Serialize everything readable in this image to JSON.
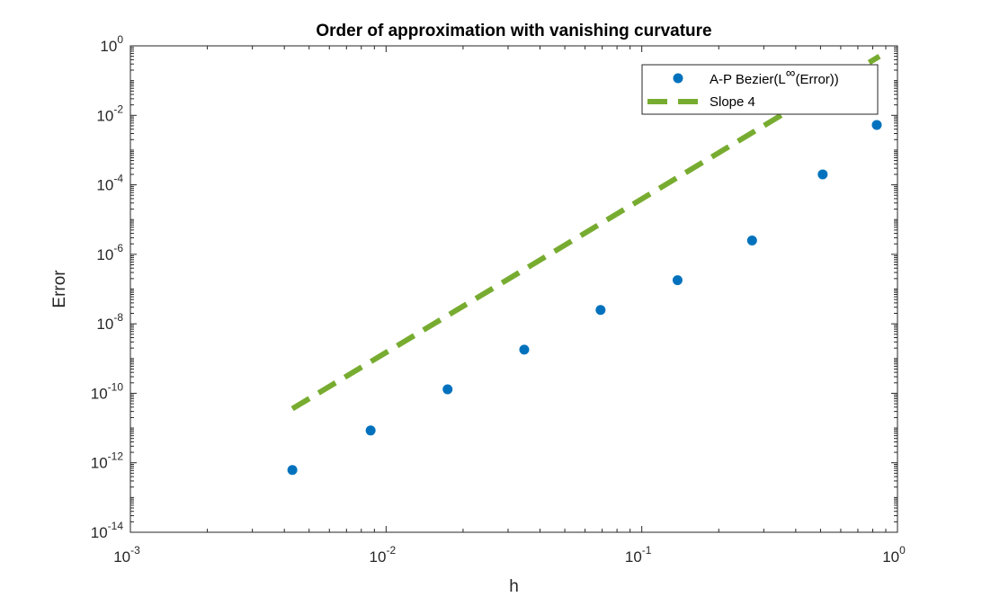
{
  "chart_data": {
    "type": "scatter",
    "title": "Order of approximation with vanishing curvature",
    "xlabel": "h",
    "ylabel": "Error",
    "xscale": "log",
    "yscale": "log",
    "xlim": [
      0.001,
      1
    ],
    "ylim": [
      1e-14,
      1
    ],
    "grid": false,
    "legend_position": "top-right",
    "x_ticks": [
      {
        "base": "10",
        "exp": "-3"
      },
      {
        "base": "10",
        "exp": "-2"
      },
      {
        "base": "10",
        "exp": "-1"
      },
      {
        "base": "10",
        "exp": "0"
      }
    ],
    "y_ticks": [
      {
        "base": "10",
        "exp": "-14"
      },
      {
        "base": "10",
        "exp": "-12"
      },
      {
        "base": "10",
        "exp": "-10"
      },
      {
        "base": "10",
        "exp": "-8"
      },
      {
        "base": "10",
        "exp": "-6"
      },
      {
        "base": "10",
        "exp": "-4"
      },
      {
        "base": "10",
        "exp": "-2"
      },
      {
        "base": "10",
        "exp": "0"
      }
    ],
    "series": [
      {
        "name": "A-P Bezier(L∞(Error))",
        "legend_prefix": "A-P Bezier(L",
        "legend_sup": "∞",
        "legend_suffix": "(Error))",
        "kind": "markers",
        "color": "#0072BD",
        "x": [
          0.0043,
          0.0087,
          0.0174,
          0.0347,
          0.069,
          0.138,
          0.27,
          0.51,
          0.83
        ],
        "y": [
          6.2e-13,
          8.5e-12,
          1.3e-10,
          1.8e-09,
          2.5e-08,
          1.8e-07,
          2.5e-06,
          0.0002,
          0.0053
        ]
      },
      {
        "name": "Slope 4",
        "kind": "dashed-line",
        "color": "#77AC30",
        "x": [
          0.0043,
          0.85
        ],
        "y": [
          3.6e-11,
          0.5
        ]
      }
    ]
  }
}
